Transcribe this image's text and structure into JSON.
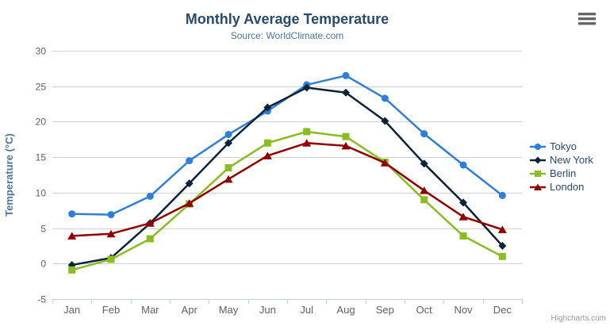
{
  "chart": {
    "context_menu": {
      "icon": "hamburger-icon"
    }
  },
  "chart_data": {
    "type": "line",
    "title": "Monthly Average Temperature",
    "subtitle": "Source: WorldClimate.com",
    "categories": [
      "Jan",
      "Feb",
      "Mar",
      "Apr",
      "May",
      "Jun",
      "Jul",
      "Aug",
      "Sep",
      "Oct",
      "Nov",
      "Dec"
    ],
    "xlabel": "",
    "ylabel": "Temperature (°C)",
    "ylim": [
      -5,
      30
    ],
    "ytick_interval": 5,
    "grid": true,
    "legend_position": "right",
    "series": [
      {
        "name": "Tokyo",
        "color": "#2f7ed8",
        "marker": "circle",
        "values": [
          7.0,
          6.9,
          9.5,
          14.5,
          18.2,
          21.5,
          25.2,
          26.5,
          23.3,
          18.3,
          13.9,
          9.6
        ]
      },
      {
        "name": "New York",
        "color": "#0d233a",
        "marker": "diamond",
        "values": [
          -0.2,
          0.8,
          5.7,
          11.3,
          17.0,
          22.0,
          24.8,
          24.1,
          20.1,
          14.1,
          8.6,
          2.5
        ]
      },
      {
        "name": "Berlin",
        "color": "#8bbc21",
        "marker": "square",
        "values": [
          -0.9,
          0.6,
          3.5,
          8.4,
          13.5,
          17.0,
          18.6,
          17.9,
          14.3,
          9.0,
          3.9,
          1.0
        ]
      },
      {
        "name": "London",
        "color": "#910000",
        "marker": "triangle",
        "values": [
          3.9,
          4.2,
          5.7,
          8.5,
          11.9,
          15.2,
          17.0,
          16.6,
          14.2,
          10.3,
          6.6,
          4.8
        ]
      }
    ],
    "credit": "Highcharts.com"
  },
  "colors": {
    "title": "#274b6d",
    "subtitle": "#4d759e",
    "axis_title": "#4d759e",
    "axis_labels": "#606060",
    "gridline": "#d0d0d0",
    "axis_line": "#c0d0e0",
    "legend_text": "#274b6d",
    "credit": "#999999",
    "menu_icon": "#666666",
    "background": "#ffffff"
  }
}
